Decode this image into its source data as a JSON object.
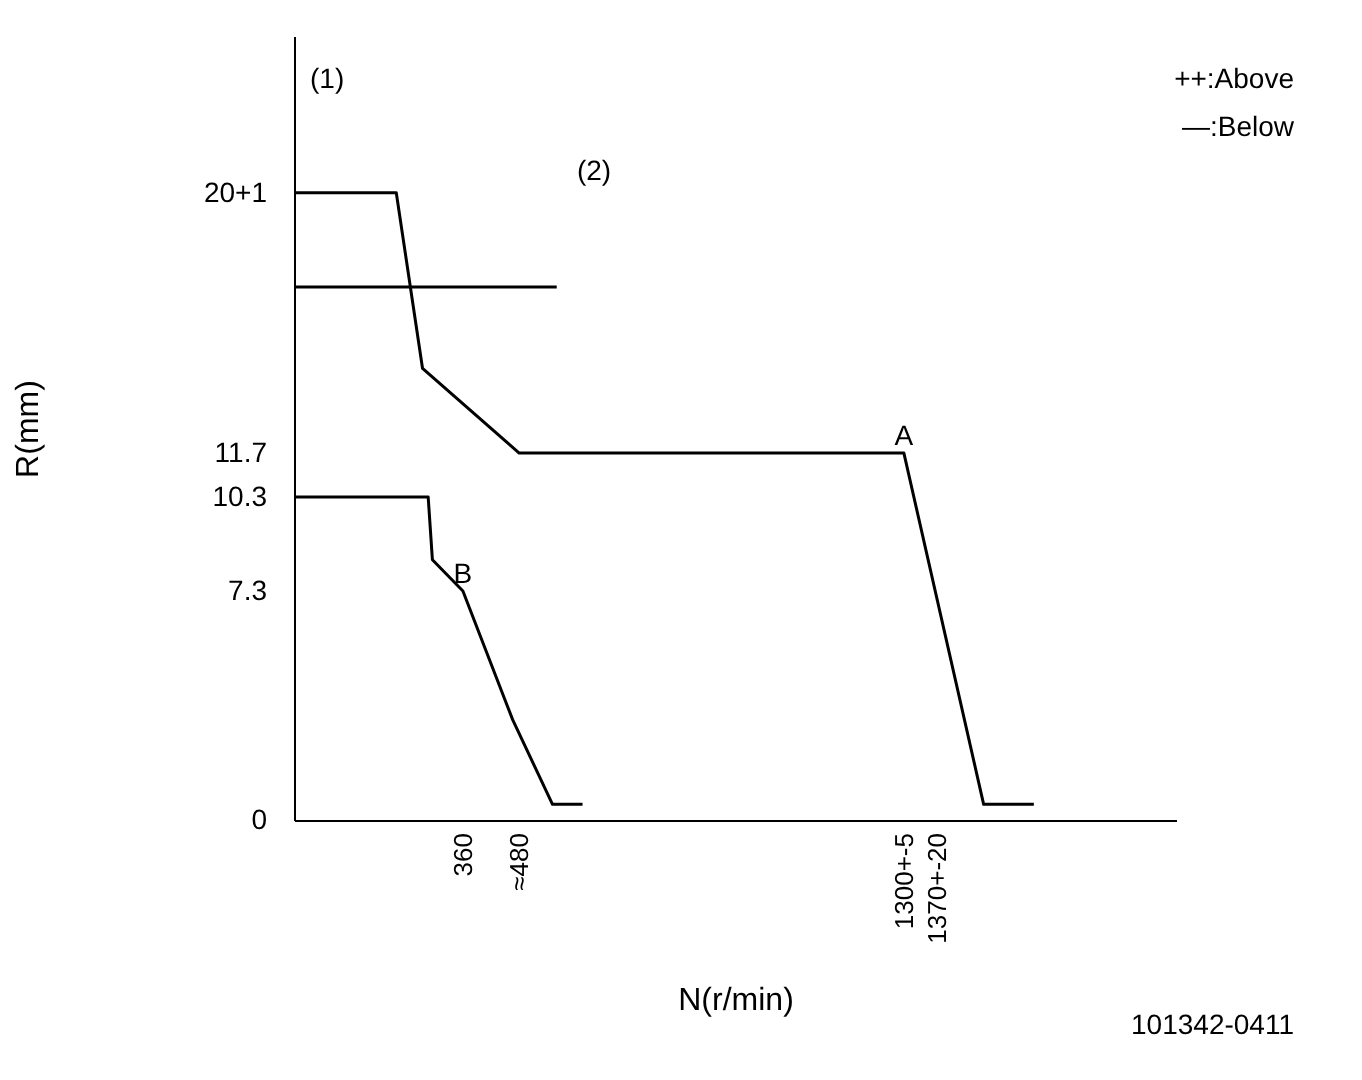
{
  "chart_data": {
    "type": "line",
    "xlabel": "N(r/min)",
    "ylabel": "R(mm)",
    "xlim": [
      0,
      1880
    ],
    "ylim": [
      0,
      25
    ],
    "xticks": [
      360,
      {
        "value": 480,
        "label": "≈480"
      },
      {
        "value": 1300,
        "label": "1300+-5"
      },
      {
        "value": 1370,
        "label": "1370+-20"
      }
    ],
    "yticks": [
      0,
      7.3,
      10.3,
      11.7,
      {
        "value": 20,
        "label": "20+1"
      }
    ],
    "series": [
      {
        "color": "#000000",
        "x": [
          0,
          218,
          274,
          480,
          1300,
          1470,
          1577
        ],
        "values": [
          20,
          20,
          14.4,
          11.7,
          11.7,
          0.5,
          0.5
        ]
      },
      {
        "color": "#000000",
        "x": [
          0,
          286,
          295,
          360,
          466,
          551,
          615
        ],
        "values": [
          10.3,
          10.3,
          8.3,
          7.3,
          3.2,
          0.5,
          0.5
        ]
      },
      {
        "color": "#000000",
        "x": [
          0,
          560
        ],
        "values": [
          17,
          17
        ]
      }
    ],
    "annotations": [
      "(1)",
      "++:Above",
      "—:Below",
      "101342-0411",
      "(2)",
      {
        "text": "A",
        "x": 1300,
        "y": 11.7
      },
      {
        "text": "B",
        "x": 360,
        "y": 7.3
      }
    ],
    "grid": false,
    "marker": "none",
    "line_style": "solid"
  }
}
